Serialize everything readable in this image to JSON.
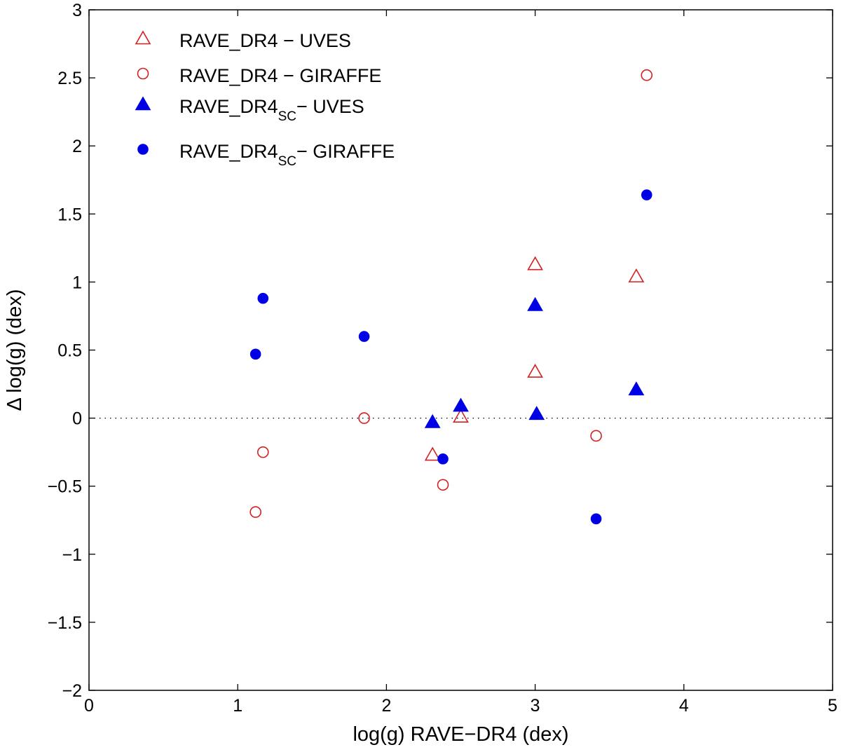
{
  "chart_data": {
    "type": "scatter",
    "xlabel": "log(g) RAVE−DR4 (dex)",
    "ylabel": "Δ log(g) (dex)",
    "xlim": [
      0,
      5
    ],
    "ylim": [
      -2,
      3
    ],
    "xticks": [
      0,
      1,
      2,
      3,
      4,
      5
    ],
    "yticks": [
      -2,
      -1.5,
      -1,
      -0.5,
      0,
      0.5,
      1,
      1.5,
      2,
      2.5,
      3
    ],
    "xtick_labels": [
      "0",
      "1",
      "2",
      "3",
      "4",
      "5"
    ],
    "ytick_labels": [
      "−2",
      "−1.5",
      "−1",
      "−0.5",
      "0",
      "0.5",
      "1",
      "1.5",
      "2",
      "2.5",
      "3"
    ],
    "reference_line": {
      "y": 0,
      "style": "dotted"
    },
    "grid": false,
    "legend_position": "top-left",
    "series": [
      {
        "name": "RAVE_DR4 − UVES",
        "legend_main": "RAVE_DR4 − UVES",
        "legend_sub": "",
        "legend_tail": "",
        "marker": "triangle",
        "filled": false,
        "color": "#d42020",
        "points": [
          [
            2.31,
            -0.27
          ],
          [
            2.5,
            0.01
          ],
          [
            3.0,
            1.13
          ],
          [
            3.0,
            0.34
          ],
          [
            3.68,
            1.04
          ]
        ]
      },
      {
        "name": "RAVE_DR4 − GIRAFFE",
        "legend_main": "RAVE_DR4 − GIRAFFE",
        "legend_sub": "",
        "legend_tail": "",
        "marker": "circle",
        "filled": false,
        "color": "#d42020",
        "points": [
          [
            1.12,
            -0.69
          ],
          [
            1.17,
            -0.25
          ],
          [
            1.85,
            0.0
          ],
          [
            2.38,
            -0.49
          ],
          [
            3.41,
            -0.13
          ],
          [
            3.75,
            2.52
          ]
        ]
      },
      {
        "name": "RAVE_DR4SC− UVES",
        "legend_main": "RAVE_DR4",
        "legend_sub": "SC",
        "legend_tail": "− UVES",
        "marker": "triangle",
        "filled": true,
        "color": "#0000e6",
        "points": [
          [
            2.31,
            -0.03
          ],
          [
            2.5,
            0.09
          ],
          [
            3.0,
            0.83
          ],
          [
            3.01,
            0.03
          ],
          [
            3.68,
            0.21
          ]
        ]
      },
      {
        "name": "RAVE_DR4SC− GIRAFFE",
        "legend_main": "RAVE_DR4",
        "legend_sub": "SC",
        "legend_tail": "− GIRAFFE",
        "marker": "circle",
        "filled": true,
        "color": "#0000e6",
        "points": [
          [
            1.12,
            0.47
          ],
          [
            1.17,
            0.88
          ],
          [
            1.85,
            0.6
          ],
          [
            2.38,
            -0.3
          ],
          [
            3.41,
            -0.74
          ],
          [
            3.75,
            1.64
          ]
        ]
      }
    ]
  }
}
